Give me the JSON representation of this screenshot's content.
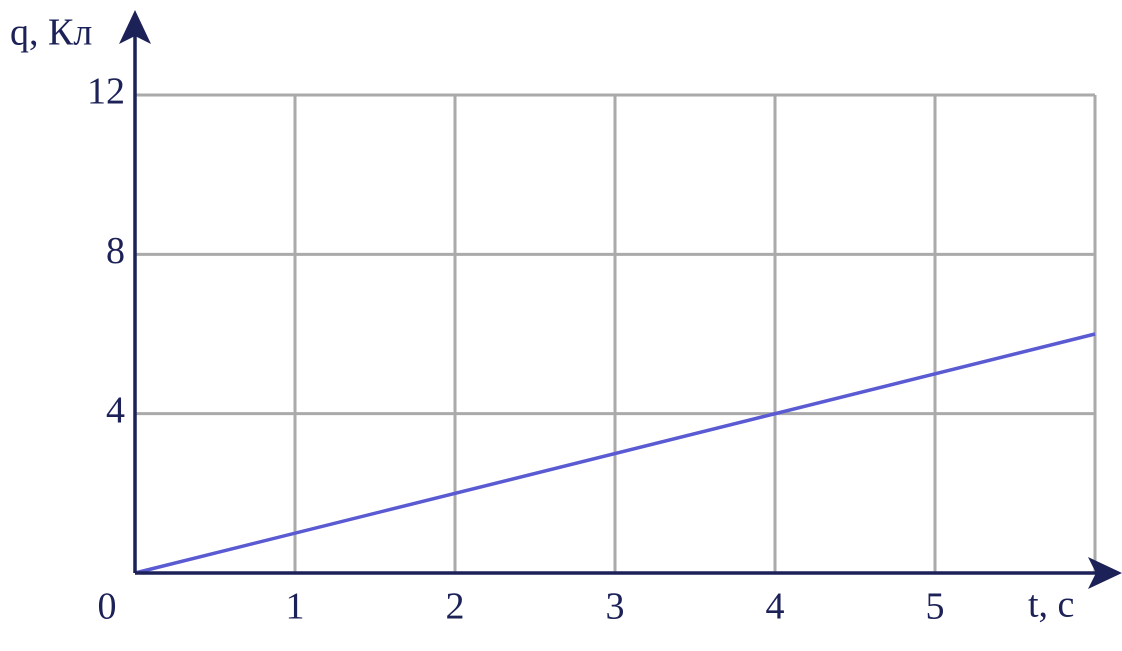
{
  "chart_data": {
    "type": "line",
    "x_label": "t, с",
    "y_label": "q, Кл",
    "x": [
      0,
      6
    ],
    "series": [
      {
        "color": "#5a5ad2",
        "values": [
          0,
          6
        ]
      }
    ],
    "xlim": [
      0,
      6
    ],
    "ylim": [
      0,
      12
    ],
    "xticks": [
      0,
      1,
      2,
      3,
      4,
      5
    ],
    "yticks": [
      4,
      8,
      12
    ],
    "grid": true
  }
}
